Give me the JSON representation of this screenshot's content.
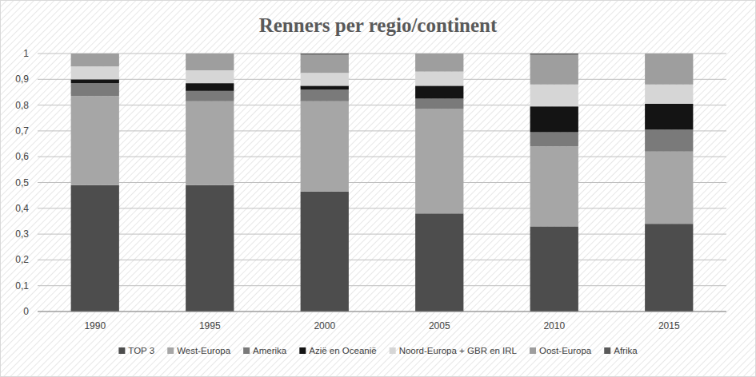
{
  "chart_data": {
    "type": "bar",
    "title": "Renners per regio/continent",
    "stacked": true,
    "grid": true,
    "legend": "bottom",
    "categories": [
      "1990",
      "1995",
      "2000",
      "2005",
      "2010",
      "2015"
    ],
    "ylim": [
      0,
      1
    ],
    "yticks": [
      0,
      {
        "value": 0.1,
        "label": "0,1"
      },
      {
        "value": 0.2,
        "label": "0,2"
      },
      {
        "value": 0.3,
        "label": "0,3"
      },
      {
        "value": 0.4,
        "label": "0,4"
      },
      {
        "value": 0.5,
        "label": "0,5"
      },
      {
        "value": 0.6,
        "label": "0,6"
      },
      {
        "value": 0.7,
        "label": "0,7"
      },
      {
        "value": 0.8,
        "label": "0,8"
      },
      {
        "value": 0.9,
        "label": "0,9"
      },
      1
    ],
    "series": [
      {
        "name": "TOP 3",
        "color": "#4d4d4d",
        "values": [
          0.49,
          0.49,
          0.465,
          0.38,
          0.33,
          0.34
        ]
      },
      {
        "name": "West-Europa",
        "color": "#a6a6a6",
        "values": [
          0.345,
          0.325,
          0.35,
          0.405,
          0.31,
          0.28
        ]
      },
      {
        "name": "Amerika",
        "color": "#7a7a7a",
        "values": [
          0.05,
          0.04,
          0.045,
          0.04,
          0.055,
          0.085
        ]
      },
      {
        "name": "Azië en Oceanië",
        "color": "#141414",
        "values": [
          0.015,
          0.03,
          0.015,
          0.05,
          0.1,
          0.1
        ]
      },
      {
        "name": "Noord-Europa + GBR en IRL",
        "color": "#d6d6d6",
        "values": [
          0.05,
          0.05,
          0.05,
          0.055,
          0.085,
          0.075
        ]
      },
      {
        "name": "Oost-Europa",
        "color": "#9e9e9e",
        "values": [
          0.05,
          0.065,
          0.07,
          0.07,
          0.115,
          0.12
        ]
      },
      {
        "name": "Afrika",
        "color": "#5a5a5a",
        "values": [
          0,
          0,
          0.005,
          0,
          0.005,
          0
        ]
      }
    ]
  }
}
